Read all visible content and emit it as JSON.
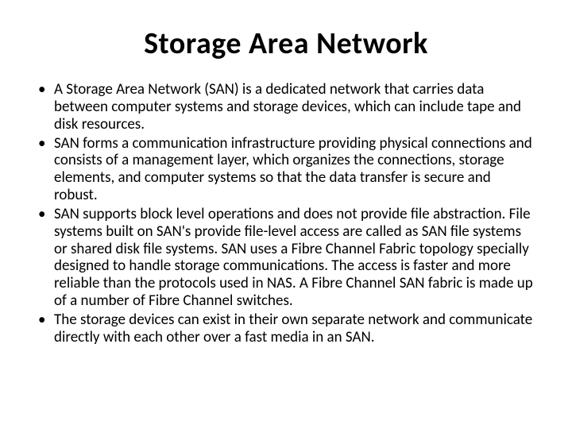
{
  "slide": {
    "title": "Storage Area Network",
    "bullets": [
      "A Storage Area Network (SAN) is a dedicated network that carries data between computer systems and storage devices, which can include tape and disk resources.",
      "SAN forms a communication infrastructure providing physical connections and consists of a management layer, which organizes the connections, storage elements, and computer systems so that the data transfer is secure and robust.",
      "SAN supports block level operations and does not provide file abstraction. File systems built on SAN's provide file-level access are called as SAN file systems or shared disk file systems. SAN uses a Fibre Channel Fabric topology specially designed to handle storage communications. The access is faster and more reliable than the protocols used in NAS. A Fibre Channel SAN fabric is made up of a number of Fibre Channel switches.",
      "The storage devices can exist in their own separate network and communicate directly with each other over a fast media in an SAN."
    ]
  },
  "colors": {
    "background": "#ffffff",
    "text": "#000000"
  },
  "typography": {
    "title_fontsize": 38,
    "title_weight": 700,
    "body_fontsize": 19,
    "body_lineheight": 1.15,
    "font_family": "Calibri"
  }
}
